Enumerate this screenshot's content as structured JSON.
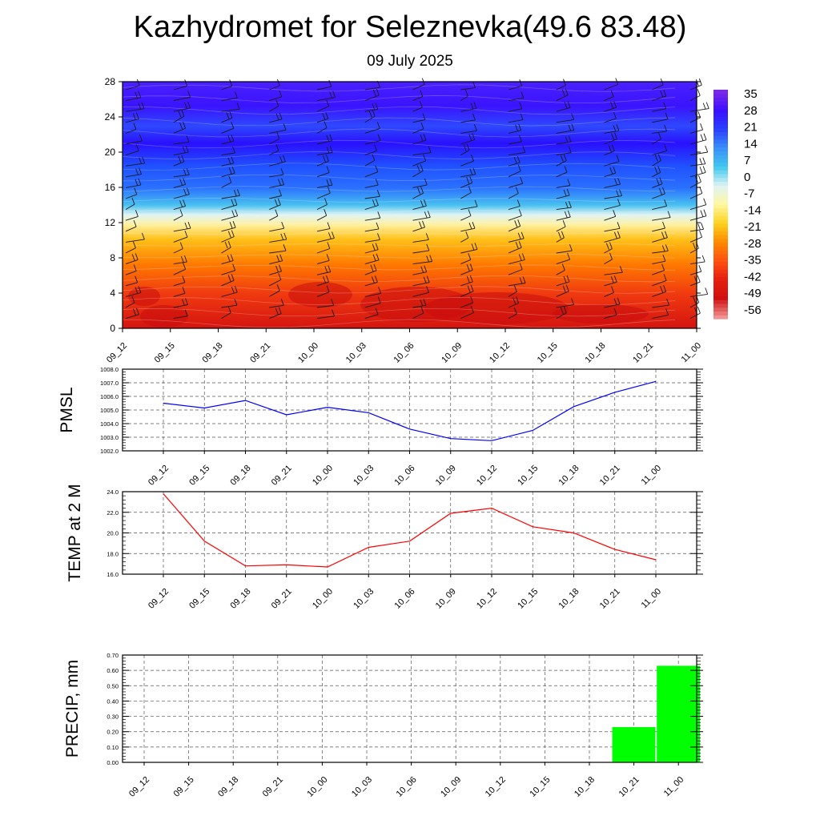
{
  "header": {
    "title": "Kazhydromet for Seleznevka(49.6 83.48)",
    "subtitle": "09 July 2025"
  },
  "colors": {
    "pmsl_line": "#0000ff",
    "temp_line": "#ff0000",
    "precip_bar": "#00ff00",
    "colormap": [
      "#7a28e8",
      "#3a10ff",
      "#2a40ff",
      "#3a90f8",
      "#40c8f0",
      "#dff4f4",
      "#fff8a0",
      "#ffd21e",
      "#ff8a00",
      "#ff5010",
      "#e42010",
      "#d01010",
      "#f09090"
    ]
  },
  "chart_data": [
    {
      "id": "heightmap",
      "type": "heatmap",
      "title": "",
      "xlabel": "",
      "ylabel": "",
      "categories": [
        "09_12",
        "09_15",
        "09_18",
        "09_21",
        "10_00",
        "10_03",
        "10_06",
        "10_09",
        "10_12",
        "10_15",
        "10_18",
        "10_21",
        "11_00"
      ],
      "ylim": [
        0,
        28
      ],
      "yticks": [
        0,
        4,
        8,
        12,
        16,
        20,
        24,
        28
      ],
      "colorbar_labels": [
        "35",
        "28",
        "21",
        "14",
        "7",
        "0",
        "-7",
        "-14",
        "-21",
        "-28",
        "-35",
        "-42",
        "-49",
        "-56"
      ],
      "wind_barbs": true
    },
    {
      "id": "pmsl",
      "type": "line",
      "ylabel": "PMSL",
      "categories": [
        "09_12",
        "09_15",
        "09_18",
        "09_21",
        "10_00",
        "10_03",
        "10_06",
        "10_09",
        "10_12",
        "10_15",
        "10_18",
        "10_21",
        "11_00"
      ],
      "values": [
        1005.5,
        1005.15,
        1005.7,
        1004.65,
        1005.2,
        1004.8,
        1003.6,
        1002.9,
        1002.75,
        1003.5,
        1005.25,
        1006.3,
        1007.1
      ],
      "ylim": [
        1002.0,
        1008.0
      ],
      "yticks": [
        "1002.0",
        "1003.0",
        "1004.0",
        "1005.0",
        "1006.0",
        "1007.0",
        "1008.0"
      ],
      "grid": true
    },
    {
      "id": "temp",
      "type": "line",
      "ylabel": "TEMP at 2 M",
      "categories": [
        "09_12",
        "09_15",
        "09_18",
        "09_21",
        "10_00",
        "10_03",
        "10_06",
        "10_09",
        "10_12",
        "10_15",
        "10_18",
        "10_21",
        "11_00"
      ],
      "values": [
        23.8,
        19.2,
        16.8,
        16.9,
        16.7,
        18.6,
        19.2,
        21.9,
        22.4,
        20.6,
        20.0,
        18.4,
        17.4
      ],
      "ylim": [
        16.0,
        24.0
      ],
      "yticks": [
        "16.0",
        "18.0",
        "20.0",
        "22.0",
        "24.0"
      ],
      "grid": true
    },
    {
      "id": "precip",
      "type": "bar",
      "ylabel": "PRECIP, mm",
      "categories": [
        "09_12",
        "09_15",
        "09_18",
        "09_21",
        "10_00",
        "10_03",
        "10_06",
        "10_09",
        "10_12",
        "10_15",
        "10_18",
        "10_21",
        "11_00"
      ],
      "values": [
        0,
        0,
        0,
        0,
        0,
        0,
        0,
        0,
        0,
        0,
        0,
        0.23,
        0.63
      ],
      "ylim": [
        0,
        0.7
      ],
      "yticks": [
        "0.00",
        "0.10",
        "0.20",
        "0.30",
        "0.40",
        "0.50",
        "0.60",
        "0.70"
      ],
      "grid": true
    }
  ]
}
